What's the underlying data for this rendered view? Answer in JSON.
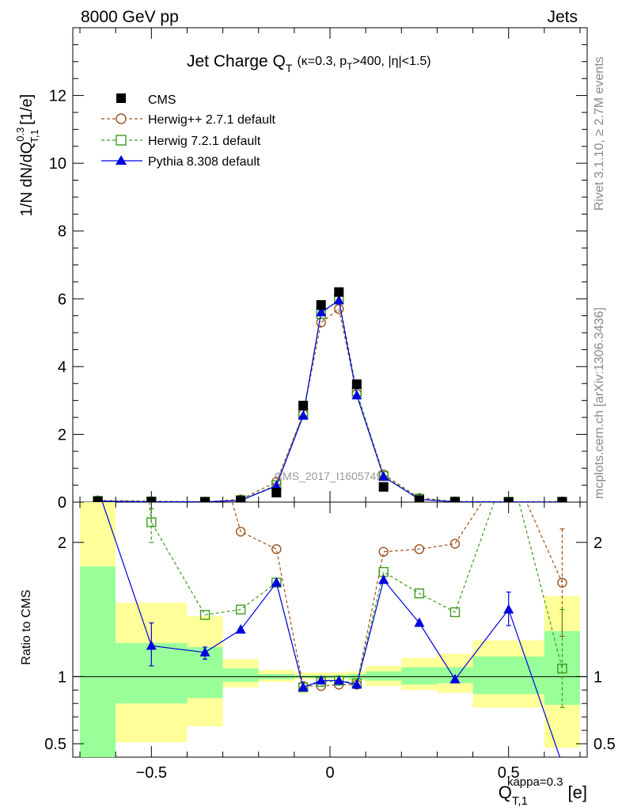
{
  "chart_data": {
    "type": "line",
    "header_left": "8000 GeV pp",
    "header_right": "Jets",
    "title_main": "Jet Charge Q",
    "title_sub_T": "T",
    "title_params": "(κ=0.3, p",
    "title_params_T": "T",
    "title_params_rest": ">400, |η|<1.5)",
    "ylabel_parts": {
      "a": "1/N dN/dQ",
      "sup": "0.3",
      "sub": "T,1",
      "b": " [1/e]"
    },
    "ratio_ylabel": "Ratio to CMS",
    "xlabel_parts": {
      "a": "Q",
      "sub": "T,1",
      "sup": "kappa=0.3",
      "b": " [e]"
    },
    "right_label_top": "Rivet 3.1.10, ≥ 2.7M events",
    "right_label_bottom": "mcplots.cern.ch [arXiv:1306.3436]",
    "watermark": "CMS_2017_I1605749",
    "xlim": [
      -0.72,
      0.72
    ],
    "ylim": [
      0,
      14
    ],
    "ratio_ylim": [
      0.4,
      2.3
    ],
    "x_ticks": [
      -0.5,
      0,
      0.5
    ],
    "x_tick_labels": [
      "−0.5",
      "0",
      "0.5"
    ],
    "y_ticks": [
      0,
      2,
      4,
      6,
      8,
      10,
      12
    ],
    "y_tick_labels": [
      "0",
      "2",
      "4",
      "6",
      "8",
      "10",
      "12"
    ],
    "ratio_ticks": [
      0.5,
      1,
      2
    ],
    "ratio_tick_labels": [
      "0.5",
      "1",
      "2"
    ],
    "x": [
      -0.65,
      -0.5,
      -0.35,
      -0.25,
      -0.15,
      -0.075,
      -0.025,
      0.025,
      0.075,
      0.15,
      0.25,
      0.35,
      0.5,
      0.65
    ],
    "bin_edges": [
      -0.7,
      -0.6,
      -0.4,
      -0.3,
      -0.2,
      -0.1,
      -0.05,
      0,
      0.05,
      0.1,
      0.2,
      0.3,
      0.4,
      0.6,
      0.7
    ],
    "series": [
      {
        "name": "CMS",
        "color": "#000000",
        "marker": "filled-square",
        "style": "points",
        "values": [
          0.02,
          0.01,
          0.01,
          0.04,
          0.28,
          2.85,
          5.82,
          6.2,
          3.48,
          0.45,
          0.06,
          0.01,
          0.005,
          0.01
        ]
      },
      {
        "name": "Herwig++ 2.7.1 default",
        "color": "#a0521a",
        "marker": "open-circle",
        "style": "dashed",
        "values": [
          0.05,
          0.03,
          0.01,
          0.08,
          0.6,
          2.6,
          5.3,
          5.7,
          3.2,
          0.82,
          0.12,
          0.02,
          0.01,
          0.02
        ],
        "ratio": [
          6.0,
          3.2,
          3.0,
          2.08,
          1.95,
          0.93,
          0.93,
          0.94,
          0.94,
          1.93,
          1.95,
          1.99,
          2.6,
          1.7
        ]
      },
      {
        "name": "Herwig 7.2.1 default",
        "color": "#3d9b1c",
        "marker": "open-square",
        "style": "dashed",
        "values": [
          0.04,
          0.02,
          0.01,
          0.06,
          0.5,
          2.6,
          5.55,
          6.0,
          3.25,
          0.77,
          0.1,
          0.015,
          0.01,
          0.01
        ],
        "ratio": [
          6.0,
          2.15,
          1.46,
          1.5,
          1.7,
          0.92,
          0.96,
          0.97,
          0.95,
          1.78,
          1.62,
          1.48,
          2.6,
          1.06
        ]
      },
      {
        "name": "Pythia 8.308 default",
        "color": "#0000e0",
        "marker": "filled-triangle",
        "style": "solid",
        "values": [
          0.03,
          0.01,
          0.01,
          0.05,
          0.48,
          2.55,
          5.6,
          5.95,
          3.15,
          0.75,
          0.08,
          0.01,
          0.007,
          0.002
        ],
        "ratio": [
          2.4,
          1.23,
          1.18,
          1.35,
          1.7,
          0.92,
          0.97,
          0.97,
          0.94,
          1.72,
          1.4,
          0.98,
          1.5,
          0.35
        ]
      }
    ],
    "ratio_error_bars": [
      {
        "series": 3,
        "index": 1,
        "lo": 1.08,
        "hi": 1.4
      },
      {
        "series": 3,
        "index": 2,
        "lo": 1.13,
        "hi": 1.22
      },
      {
        "series": 3,
        "index": 12,
        "lo": 1.38,
        "hi": 1.63
      },
      {
        "series": 1,
        "index": 13,
        "lo": 1.3,
        "hi": 2.1
      },
      {
        "series": 2,
        "index": 13,
        "lo": 0.77,
        "hi": 1.5
      },
      {
        "series": 2,
        "index": 1,
        "lo": 2.0,
        "hi": 2.25
      }
    ],
    "uncertainty_band_outer": [
      [
        -0.7,
        -0.6,
        0.0,
        2.3
      ],
      [
        -0.6,
        -0.4,
        0.51,
        1.55
      ],
      [
        -0.4,
        -0.3,
        0.63,
        1.45
      ],
      [
        -0.3,
        -0.2,
        0.92,
        1.13
      ],
      [
        -0.2,
        -0.1,
        0.96,
        1.05
      ],
      [
        -0.1,
        -0.05,
        0.98,
        1.03
      ],
      [
        -0.05,
        0,
        0.98,
        1.03
      ],
      [
        0,
        0.05,
        0.98,
        1.03
      ],
      [
        0.05,
        0.1,
        0.97,
        1.04
      ],
      [
        0.1,
        0.2,
        0.93,
        1.08
      ],
      [
        0.2,
        0.3,
        0.9,
        1.14
      ],
      [
        0.3,
        0.4,
        0.88,
        1.17
      ],
      [
        0.4,
        0.6,
        0.77,
        1.27
      ],
      [
        0.6,
        0.7,
        0.47,
        1.6
      ]
    ],
    "uncertainty_band_inner": [
      [
        -0.7,
        -0.6,
        0.0,
        1.82
      ],
      [
        -0.6,
        -0.4,
        0.8,
        1.25
      ],
      [
        -0.4,
        -0.3,
        0.84,
        1.22
      ],
      [
        -0.3,
        -0.2,
        0.96,
        1.06
      ],
      [
        -0.2,
        -0.1,
        0.98,
        1.02
      ],
      [
        -0.1,
        -0.05,
        0.99,
        1.01
      ],
      [
        -0.05,
        0,
        0.99,
        1.01
      ],
      [
        0,
        0.05,
        0.99,
        1.01
      ],
      [
        0.05,
        0.1,
        0.98,
        1.02
      ],
      [
        0.1,
        0.2,
        0.97,
        1.04
      ],
      [
        0.2,
        0.3,
        0.94,
        1.07
      ],
      [
        0.3,
        0.4,
        0.95,
        1.07
      ],
      [
        0.4,
        0.6,
        0.87,
        1.15
      ],
      [
        0.6,
        0.7,
        0.79,
        1.34
      ]
    ],
    "colors": {
      "band_outer": "#ffff99",
      "band_inner": "#99ff99"
    }
  }
}
